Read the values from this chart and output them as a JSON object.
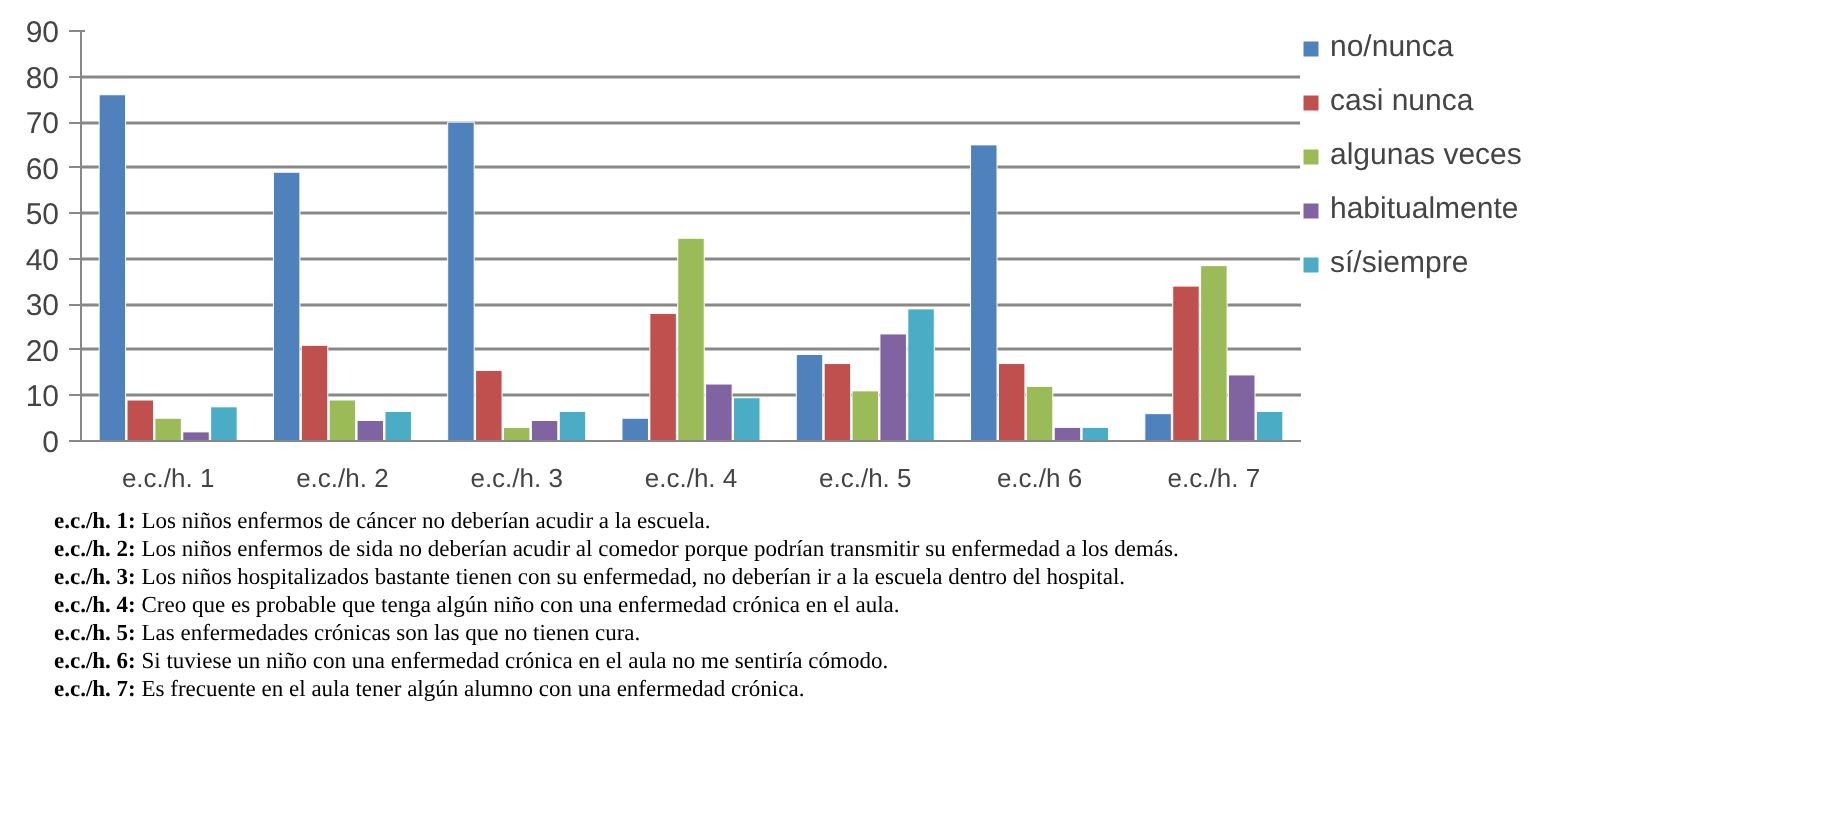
{
  "chart_data": {
    "type": "bar",
    "categories": [
      "e.c./h. 1",
      "e.c./h. 2",
      "e.c./h. 3",
      "e.c./h. 4",
      "e.c./h. 5",
      "e.c./h 6",
      "e.c./h. 7"
    ],
    "series": [
      {
        "name": "no/nunca",
        "color": "#4f81bd",
        "values": [
          76,
          59,
          70,
          5,
          19,
          65,
          6
        ]
      },
      {
        "name": "casi nunca",
        "color": "#c0504d",
        "values": [
          9,
          21,
          15.5,
          28,
          17,
          17,
          34
        ]
      },
      {
        "name": "algunas veces",
        "color": "#9bbb59",
        "values": [
          5,
          9,
          3,
          44.5,
          11,
          12,
          38.5
        ]
      },
      {
        "name": "habitualmente",
        "color": "#8064a2",
        "values": [
          2,
          4.5,
          4.5,
          12.5,
          23.5,
          3,
          14.5
        ]
      },
      {
        "name": "sí/siempre",
        "color": "#4bacc6",
        "values": [
          7.5,
          6.5,
          6.5,
          9.5,
          29,
          3,
          6.5
        ]
      }
    ],
    "ylim": [
      0,
      90
    ],
    "yticks": [
      0,
      10,
      20,
      30,
      40,
      50,
      60,
      70,
      80,
      90
    ],
    "grid": "y",
    "legend": "right",
    "annotations": [
      "e.c./h. 1: Los niños enfermos de cáncer no deberían acudir a la escuela.",
      "e.c./h. 2: Los niños enfermos de sida no deberían acudir al comedor porque podrían transmitir su enfermedad a los demás.",
      "e.c./h. 3: Los niños hospitalizados bastante tienen con su enfermedad, no deberían ir a la escuela dentro del hospital.",
      "e.c./h. 4: Creo que es probable que tenga algún niño con una enfermedad crónica en el aula.",
      "e.c./h. 5: Las enfermedades crónicas son las que no tienen cura.",
      "e.c./h. 6: Si tuviese un niño con una enfermedad crónica en el aula no me sentiría cómodo.",
      "e.c./h. 7: Es frecuente en el aula tener algún alumno con una enfermedad crónica."
    ]
  }
}
